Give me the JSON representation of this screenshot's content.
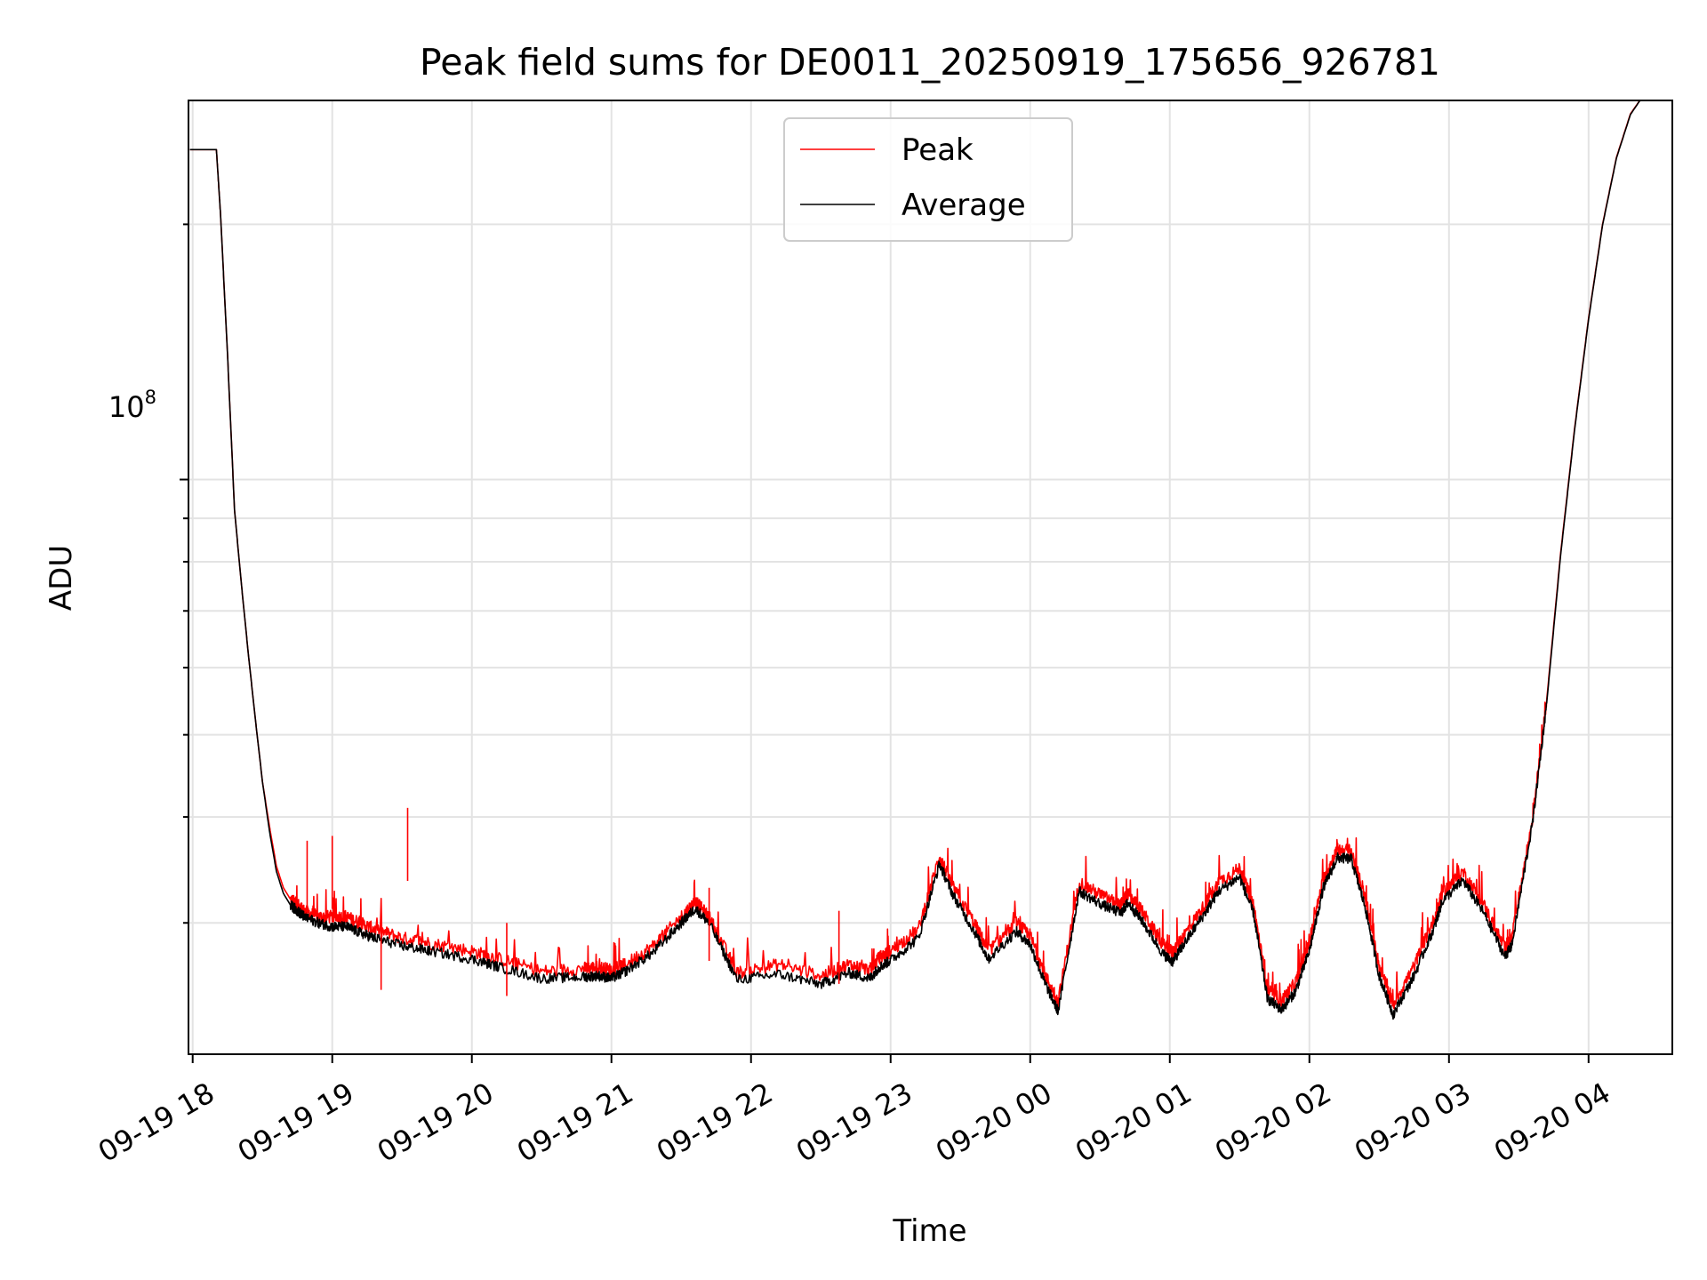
{
  "chart_data": {
    "type": "line",
    "title": "Peak field sums for DE0011_20250919_175656_926781",
    "xlabel": "Time",
    "ylabel": "ADU",
    "x_ticks": [
      "09-19 18",
      "09-19 19",
      "09-19 20",
      "09-19 21",
      "09-19 22",
      "09-19 23",
      "09-20 00",
      "09-20 01",
      "09-20 02",
      "09-20 03",
      "09-20 04"
    ],
    "x_range_hours": [
      -0.03,
      10.6
    ],
    "y_scale": "log",
    "y_major_tick": {
      "value": 100000000,
      "base": "10",
      "exponent": "8"
    },
    "ylim": [
      21000000,
      280000000
    ],
    "grid": true,
    "legend": {
      "position": "top-center"
    },
    "series": [
      {
        "name": "Peak",
        "color": "#ff0000",
        "x_hours": [
          -0.02,
          0.08,
          0.17,
          0.2,
          0.25,
          0.3,
          0.35,
          0.4,
          0.45,
          0.5,
          0.55,
          0.6,
          0.65,
          0.7,
          0.75,
          0.8,
          0.9,
          1.0,
          1.1,
          1.2,
          1.3,
          1.5,
          1.7,
          2.0,
          2.2,
          2.5,
          2.8,
          2.9,
          3.0,
          3.1,
          3.3,
          3.5,
          3.6,
          3.7,
          3.9,
          4.2,
          4.5,
          4.7,
          4.85,
          4.92,
          5.0,
          5.2,
          5.35,
          5.45,
          5.6,
          5.7,
          5.9,
          6.0,
          6.1,
          6.2,
          6.35,
          6.5,
          6.65,
          6.7,
          6.8,
          6.95,
          7.02,
          7.1,
          7.25,
          7.35,
          7.5,
          7.6,
          7.7,
          7.8,
          7.9,
          8.0,
          8.1,
          8.2,
          8.3,
          8.4,
          8.5,
          8.6,
          8.75,
          8.9,
          8.95,
          9.1,
          9.25,
          9.4,
          9.45,
          9.6,
          9.7,
          9.8,
          9.9,
          10.0,
          10.1,
          10.2,
          10.3,
          10.4
        ],
        "y_adu": [
          245000000,
          245000000,
          245000000,
          205000000,
          140000000,
          92000000,
          75000000,
          62000000,
          52000000,
          44000000,
          39000000,
          35000000,
          33000000,
          32000000,
          31500000,
          31000000,
          30500000,
          30500000,
          30500000,
          30000000,
          29500000,
          28800000,
          28400000,
          27800000,
          27200000,
          26300000,
          26500000,
          26600000,
          26400000,
          26800000,
          28200000,
          30500000,
          31800000,
          30500000,
          26200000,
          26800000,
          26000000,
          26800000,
          26400000,
          27300000,
          27800000,
          29500000,
          36000000,
          33000000,
          30000000,
          27800000,
          30000000,
          29000000,
          26200000,
          24200000,
          33500000,
          32400000,
          31500000,
          32500000,
          31000000,
          28300000,
          27700000,
          29000000,
          31500000,
          33500000,
          34800000,
          31500000,
          25000000,
          24300000,
          25500000,
          28500000,
          33800000,
          36600000,
          36500000,
          32000000,
          26700000,
          24000000,
          26700000,
          30500000,
          32500000,
          34500000,
          31500000,
          28000000,
          28800000,
          40000000,
          55000000,
          82000000,
          115000000,
          155000000,
          200000000,
          240000000,
          270000000,
          285000000
        ]
      },
      {
        "name": "Average",
        "color": "#000000",
        "x_hours": [
          -0.02,
          0.08,
          0.17,
          0.2,
          0.25,
          0.3,
          0.35,
          0.4,
          0.45,
          0.5,
          0.55,
          0.6,
          0.65,
          0.7,
          0.75,
          0.8,
          0.9,
          1.0,
          1.1,
          1.2,
          1.3,
          1.5,
          1.7,
          2.0,
          2.2,
          2.5,
          2.8,
          2.9,
          3.0,
          3.1,
          3.3,
          3.5,
          3.6,
          3.7,
          3.9,
          4.2,
          4.5,
          4.7,
          4.85,
          4.92,
          5.0,
          5.2,
          5.35,
          5.45,
          5.6,
          5.7,
          5.9,
          6.0,
          6.1,
          6.2,
          6.35,
          6.5,
          6.65,
          6.7,
          6.8,
          6.95,
          7.02,
          7.1,
          7.25,
          7.35,
          7.5,
          7.6,
          7.7,
          7.8,
          7.9,
          8.0,
          8.1,
          8.2,
          8.3,
          8.4,
          8.5,
          8.6,
          8.75,
          8.9,
          8.95,
          9.1,
          9.25,
          9.4,
          9.45,
          9.6,
          9.7,
          9.8,
          9.9,
          10.0,
          10.1,
          10.2,
          10.3,
          10.4
        ],
        "y_adu": [
          245000000,
          245000000,
          245000000,
          205000000,
          140000000,
          92000000,
          75000000,
          62000000,
          52000000,
          44000000,
          38500000,
          34500000,
          32500000,
          31500000,
          31000000,
          30500000,
          30000000,
          29700000,
          29700000,
          29200000,
          28800000,
          28200000,
          27800000,
          27200000,
          26600000,
          25800000,
          25900000,
          26000000,
          25800000,
          26300000,
          27700000,
          30000000,
          31200000,
          30000000,
          25700000,
          26100000,
          25400000,
          26200000,
          25800000,
          26600000,
          27100000,
          28800000,
          35200000,
          32300000,
          29300000,
          27200000,
          29300000,
          28300000,
          25600000,
          23600000,
          32700000,
          31600000,
          30800000,
          31700000,
          30200000,
          27600000,
          27000000,
          28300000,
          30800000,
          32700000,
          34000000,
          30800000,
          24400000,
          23700000,
          24900000,
          27800000,
          33000000,
          35800000,
          35700000,
          31300000,
          26000000,
          23400000,
          26000000,
          29800000,
          31800000,
          33700000,
          30800000,
          27400000,
          28200000,
          39500000,
          54500000,
          81500000,
          114500000,
          154500000,
          199500000,
          239500000,
          269500000,
          285000000
        ]
      }
    ]
  }
}
